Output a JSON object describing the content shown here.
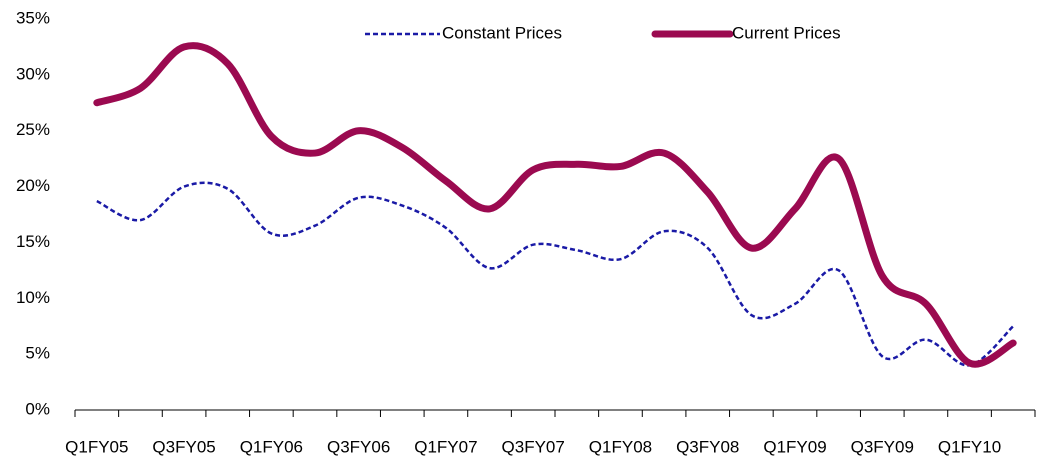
{
  "chart_data": {
    "type": "line",
    "categories": [
      "Q1FY05",
      null,
      "Q3FY05",
      null,
      "Q1FY06",
      null,
      "Q3FY06",
      null,
      "Q1FY07",
      null,
      "Q3FY07",
      null,
      "Q1FY08",
      null,
      "Q3FY08",
      null,
      "Q1FY09",
      null,
      "Q3FY09",
      null,
      "Q1FY10",
      null
    ],
    "series": [
      {
        "name": "Constant Prices",
        "color": "#1a1aa6",
        "dashed": true,
        "values": [
          18.7,
          17,
          20,
          19.8,
          15.8,
          16.5,
          19,
          18.3,
          16.3,
          12.7,
          14.8,
          14.3,
          13.5,
          16,
          14.5,
          8.5,
          9.5,
          12.5,
          4.8,
          6.3,
          4,
          7.5
        ]
      },
      {
        "name": "Current Prices",
        "color": "#9b0a50",
        "dashed": false,
        "values": [
          27.5,
          28.8,
          32.5,
          31,
          24.5,
          23,
          25,
          23.5,
          20.5,
          18,
          21.5,
          22,
          21.8,
          23,
          19.5,
          14.5,
          18,
          22.5,
          12,
          9.5,
          4.2,
          6
        ]
      }
    ],
    "ylim": [
      0,
      35
    ],
    "yticks": [
      {
        "value": 0,
        "label": "0%"
      },
      {
        "value": 5,
        "label": "5%"
      },
      {
        "value": 10,
        "label": "10%"
      },
      {
        "value": 15,
        "label": "15%"
      },
      {
        "value": 20,
        "label": "20%"
      },
      {
        "value": 25,
        "label": "25%"
      },
      {
        "value": 30,
        "label": "30%"
      },
      {
        "value": 35,
        "label": "35%"
      }
    ],
    "grid": false,
    "legend": "top"
  }
}
